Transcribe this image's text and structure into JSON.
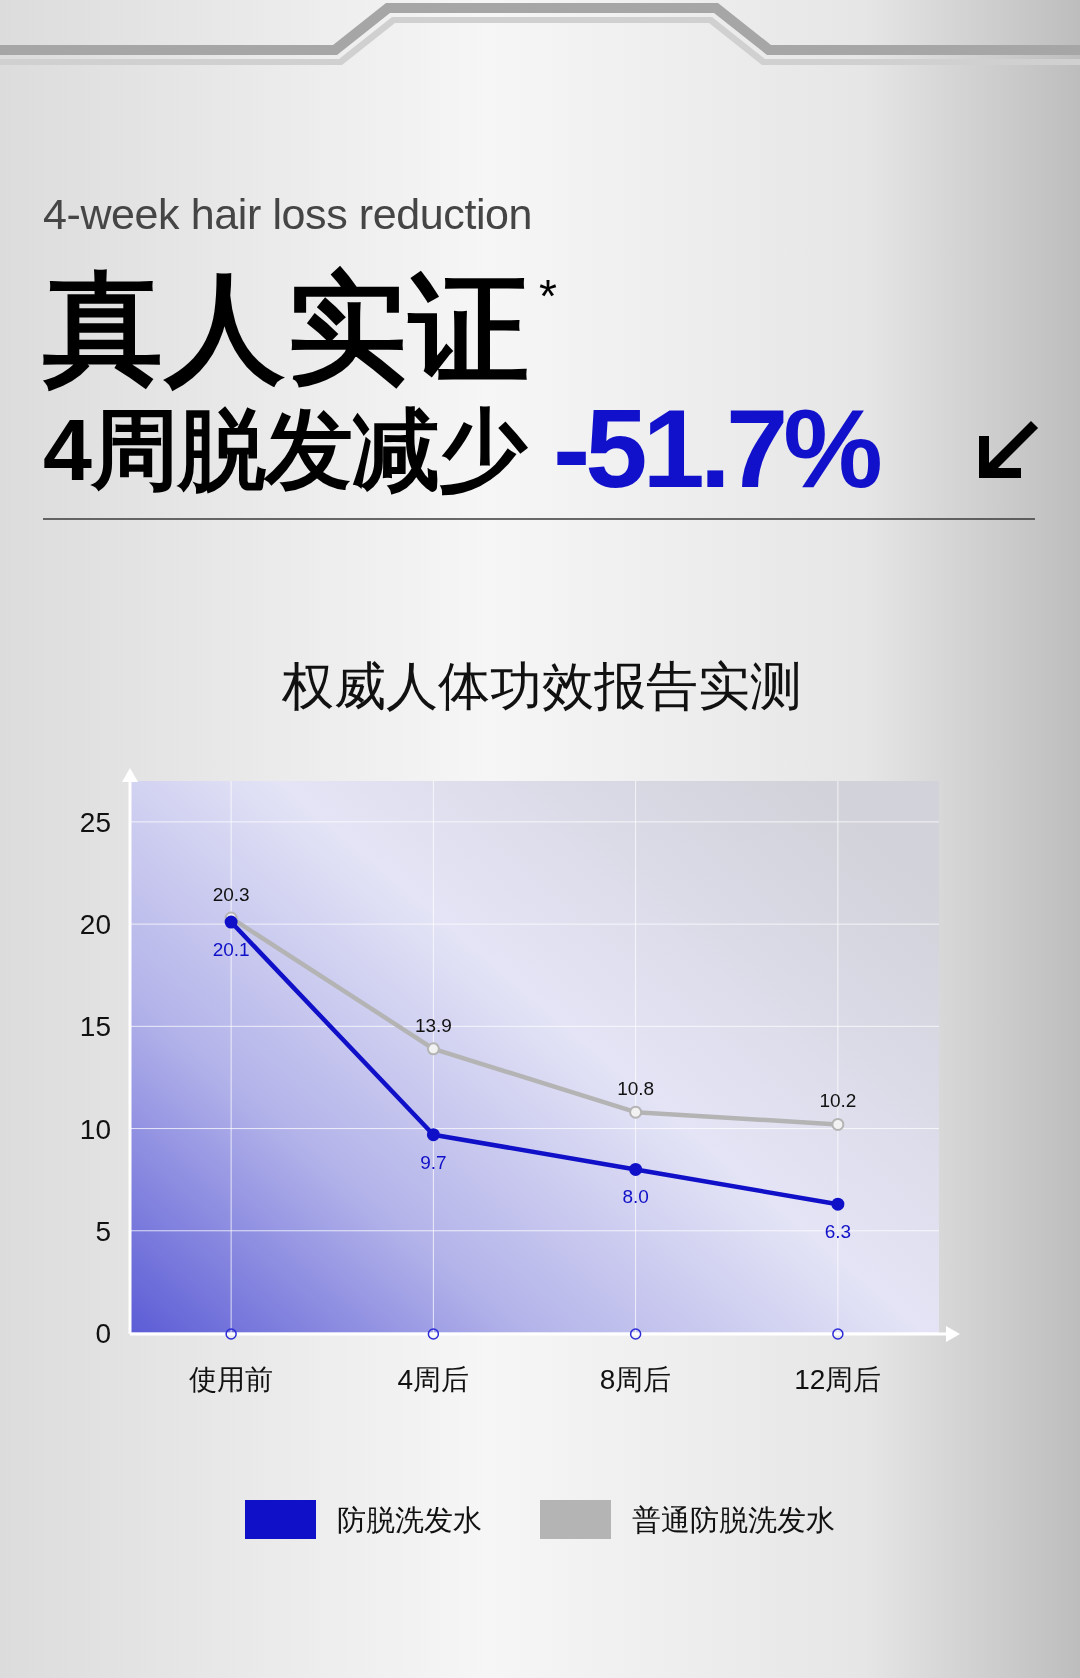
{
  "chart_data": {
    "type": "line",
    "title": "权威人体功效报告实测",
    "annotations": [
      "4-week hair loss reduction",
      "真人实证$^{*}$",
      "4周脱发减少",
      "-51.7%"
    ],
    "categories": [
      "使用前",
      "4周后",
      "8周后",
      "12周后"
    ],
    "series": [
      {
        "name": "防脱洗发水",
        "color": "#1010c8",
        "values": [
          20.1,
          9.7,
          8.0,
          6.3
        ],
        "value_labels": [
          "20.1",
          "9.7",
          "8.0",
          "6.3"
        ]
      },
      {
        "name": "普通防脱洗发水",
        "color": "#b4b4b4",
        "values": [
          20.3,
          13.9,
          10.8,
          10.2
        ],
        "value_labels": [
          "20.3",
          "13.9",
          "10.8",
          "10.2"
        ]
      }
    ],
    "ylim": [
      0,
      27
    ],
    "yticks": [
      0,
      5,
      10,
      15,
      20,
      25
    ],
    "grid": true,
    "legend": "bottom",
    "marker": "circle",
    "line_style": "solid"
  }
}
